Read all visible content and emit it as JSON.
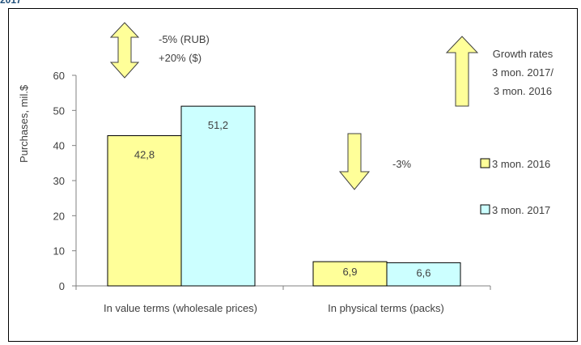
{
  "page_fragment_text": "2017",
  "chart_data": {
    "type": "bar",
    "categories": [
      "In value terms (wholesale prices)",
      "In physical terms (packs)"
    ],
    "series": [
      {
        "name": "3 mon. 2016",
        "values": [
          42.8,
          6.9
        ],
        "labels": [
          "42,8",
          "6,9"
        ],
        "color": "#ffff99"
      },
      {
        "name": "3 mon. 2017",
        "values": [
          51.2,
          6.6
        ],
        "labels": [
          "51,2",
          "6,6"
        ],
        "color": "#ccffff"
      }
    ],
    "ylabel": "Purchases, mil.$",
    "ylim": [
      0,
      60
    ],
    "yticks": [
      0,
      10,
      20,
      30,
      40,
      50,
      60
    ],
    "grid": false,
    "legend_position": "right",
    "arrow_color": "#ffff99",
    "annotations": {
      "value_change": [
        "-5% (RUB)",
        "+20% ($)"
      ],
      "physical_change": "-3%",
      "growth_rates_note": [
        "Growth rates",
        "3 mon. 2017/",
        "3 mon. 2016"
      ]
    }
  }
}
